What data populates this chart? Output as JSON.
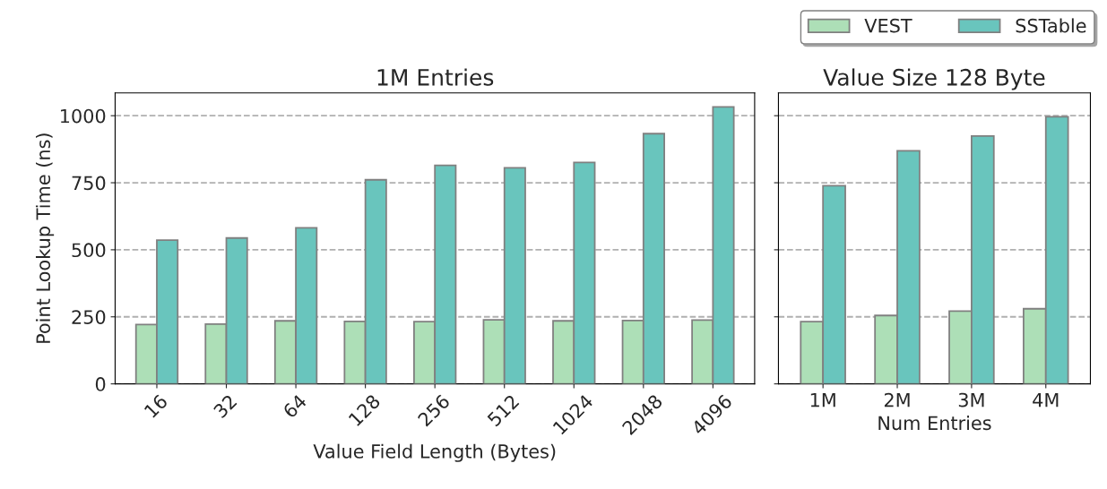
{
  "chart_data": [
    {
      "type": "bar",
      "title": "1M Entries",
      "xlabel": "Value Field Length (Bytes)",
      "ylabel": "Point Lookup Time (ns)",
      "categories": [
        "16",
        "32",
        "64",
        "128",
        "256",
        "512",
        "1024",
        "2048",
        "4096"
      ],
      "series": [
        {
          "name": "VEST",
          "color": "#addfb7",
          "values": [
            221,
            223,
            235,
            233,
            232,
            239,
            235,
            236,
            238
          ]
        },
        {
          "name": "SSTable",
          "color": "#69c5bd",
          "values": [
            536,
            544,
            582,
            761,
            815,
            806,
            826,
            933,
            1033
          ]
        }
      ],
      "ylim": [
        0,
        1085
      ],
      "yticks": [
        0,
        250,
        500,
        750,
        1000
      ],
      "grid": "y",
      "legend": "top right"
    },
    {
      "type": "bar",
      "title": "Value Size 128 Byte",
      "xlabel": "Num Entries",
      "categories": [
        "1M",
        "2M",
        "3M",
        "4M"
      ],
      "series": [
        {
          "color": "#addfb7",
          "values": [
            232,
            255,
            271,
            280
          ]
        },
        {
          "color": "#69c5bd",
          "values": [
            739,
            869,
            924,
            996
          ]
        }
      ],
      "ylim": [
        0,
        1085
      ],
      "yticks": [
        0,
        250,
        500,
        750,
        1000
      ],
      "grid": "y",
      "tick_labels": "x"
    }
  ]
}
